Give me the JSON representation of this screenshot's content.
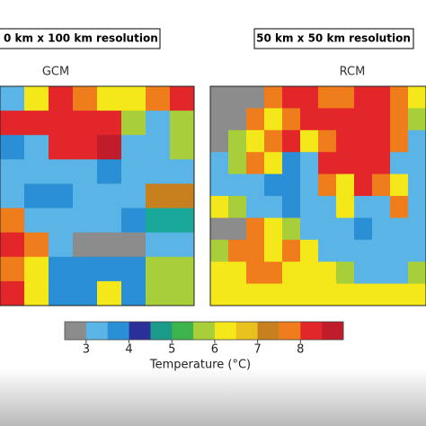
{
  "panels": [
    {
      "title": "0 km x 100 km resolution",
      "label": "GCM"
    },
    {
      "title": "50 km x 50 km resolution",
      "label": "RCM"
    }
  ],
  "colorbar": {
    "label": "Temperature (°C)",
    "bounds": [
      2.5,
      3,
      3.5,
      4,
      4.5,
      5,
      5.5,
      6,
      6.5,
      7,
      7.5,
      8,
      8.5,
      9
    ],
    "colors": [
      "#8c8c8c",
      "#5ab4e5",
      "#2b8fd6",
      "#2b2f9a",
      "#1a9a8a",
      "#3cb44b",
      "#a8cf3a",
      "#f4e81b",
      "#e8c020",
      "#c8801f",
      "#f07d1b",
      "#e3262a",
      "#c01c2a"
    ],
    "lim": [
      2.5,
      9
    ],
    "ticks": [
      3,
      4,
      5,
      6,
      7,
      8
    ]
  }
}
